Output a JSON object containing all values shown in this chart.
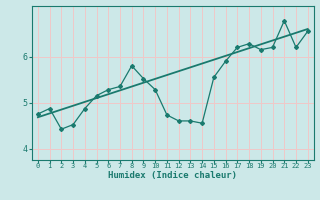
{
  "xlabel": "Humidex (Indice chaleur)",
  "ylabel": "",
  "background_color": "#cce8e8",
  "grid_color": "#f0c8c8",
  "line_color": "#1a7a6e",
  "xlim": [
    -0.5,
    23.5
  ],
  "ylim": [
    3.75,
    7.1
  ],
  "yticks": [
    4,
    5,
    6
  ],
  "xticks": [
    0,
    1,
    2,
    3,
    4,
    5,
    6,
    7,
    8,
    9,
    10,
    11,
    12,
    13,
    14,
    15,
    16,
    17,
    18,
    19,
    20,
    21,
    22,
    23
  ],
  "jagged_x": [
    0,
    1,
    2,
    3,
    4,
    5,
    6,
    7,
    8,
    9,
    10,
    11,
    12,
    13,
    14,
    15,
    16,
    17,
    18,
    19,
    20,
    21,
    22,
    23
  ],
  "jagged_y": [
    4.75,
    4.87,
    4.42,
    4.52,
    4.87,
    5.15,
    5.28,
    5.35,
    5.8,
    5.52,
    5.28,
    4.73,
    4.6,
    4.6,
    4.55,
    5.55,
    5.9,
    6.2,
    6.28,
    6.15,
    6.2,
    6.78,
    6.2,
    6.55
  ],
  "trend_x": [
    0,
    23
  ],
  "trend_y": [
    4.68,
    6.6
  ]
}
